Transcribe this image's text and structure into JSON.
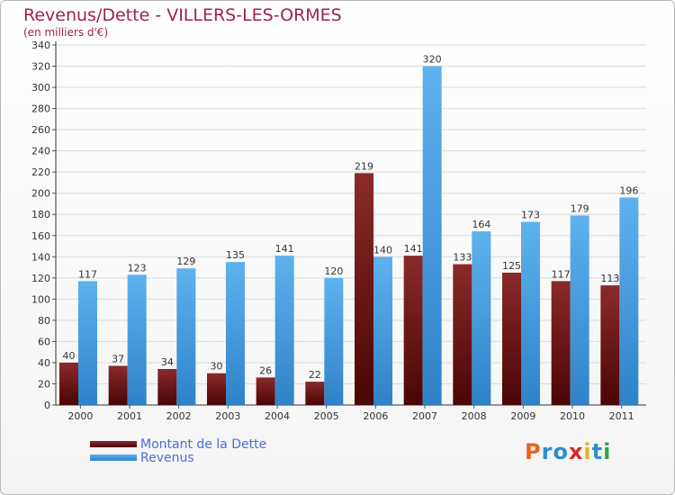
{
  "chart_data": {
    "type": "bar",
    "title": "Revenus/Dette - VILLERS-LES-ORMES",
    "subtitle": "(en milliers d'€)",
    "categories": [
      "2000",
      "2001",
      "2002",
      "2003",
      "2004",
      "2005",
      "2006",
      "2007",
      "2008",
      "2009",
      "2010",
      "2011"
    ],
    "series": [
      {
        "name": "Montant de la Dette",
        "color": "#6e0f0f",
        "values": [
          40,
          37,
          34,
          30,
          26,
          22,
          219,
          141,
          133,
          125,
          117,
          113
        ]
      },
      {
        "name": "Revenus",
        "color": "#4a9de0",
        "values": [
          117,
          123,
          129,
          135,
          141,
          120,
          140,
          320,
          164,
          173,
          179,
          196
        ]
      }
    ],
    "yticks": [
      0,
      20,
      40,
      60,
      80,
      100,
      120,
      140,
      160,
      180,
      200,
      220,
      240,
      260,
      280,
      300,
      320,
      340
    ],
    "ylim": [
      0,
      340
    ],
    "grid": true,
    "legend_position": "bottom-left"
  },
  "branding": {
    "logo_text": "Proxiti",
    "logo_colors": [
      "#e8641e",
      "#2a8fd0",
      "#2a8fd0",
      "#d62828",
      "#e0b81e",
      "#2a8fd0",
      "#2aa84a"
    ]
  }
}
